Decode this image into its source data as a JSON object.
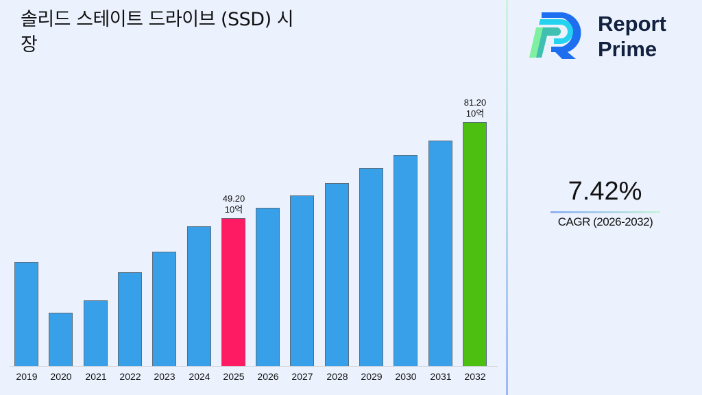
{
  "title": "솔리드 스테이트 드라이브 (SSD) 시장",
  "logo": {
    "line1": "Report",
    "line2": "Prime"
  },
  "cagr": {
    "value": "7.42%",
    "label": "CAGR (2026-2032)"
  },
  "colors": {
    "default_bar": "#38a0e8",
    "highlight_2025": "#ff1a64",
    "highlight_2032": "#4cbf10",
    "background": "#ecf2fd"
  },
  "chart_data": {
    "type": "bar",
    "title": "솔리드 스테이트 드라이브 (SSD) 시장",
    "xlabel": "",
    "ylabel": "",
    "categories": [
      "2019",
      "2020",
      "2021",
      "2022",
      "2023",
      "2024",
      "2025",
      "2026",
      "2027",
      "2028",
      "2029",
      "2030",
      "2031",
      "2032"
    ],
    "values": [
      34.6,
      17.8,
      21.8,
      31.2,
      38.0,
      46.5,
      49.2,
      52.8,
      56.7,
      60.9,
      65.9,
      70.2,
      75.1,
      81.2
    ],
    "annotations": [
      {
        "category": "2025",
        "text": "49.20",
        "unit": "10억"
      },
      {
        "category": "2032",
        "text": "81.20",
        "unit": "10억"
      }
    ],
    "grid": false,
    "legend": "none"
  }
}
